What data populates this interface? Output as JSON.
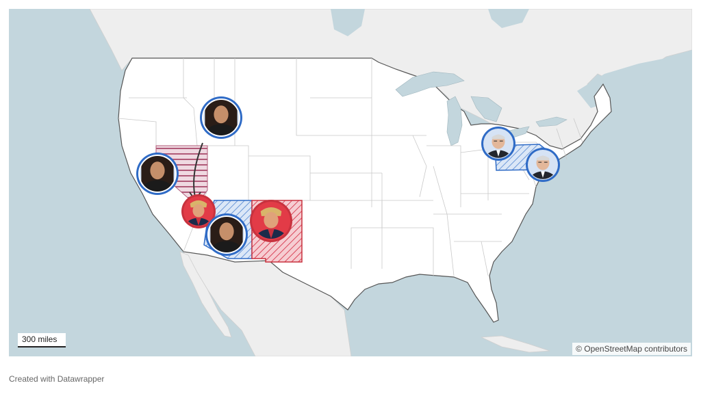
{
  "map": {
    "scale_label": "300 miles",
    "attribution": "© OpenStreetMap contributors",
    "colors": {
      "water": "#c3d6dd",
      "land_us": "#ffffff",
      "land_other": "#eeeeee",
      "democrat_blue": "#2f6bc6",
      "democrat_fill": "#cfe0f5",
      "republican_red": "#c8323e",
      "republican_fill": "#f6cdd2",
      "nevada_hatch": "#b05a78"
    },
    "markers": [
      {
        "id": "harris-utah",
        "icon": "harris-portrait",
        "party": "democrat"
      },
      {
        "id": "harris-california",
        "icon": "harris-portrait",
        "party": "democrat"
      },
      {
        "id": "trump-nevada",
        "icon": "trump-portrait",
        "party": "republican"
      },
      {
        "id": "harris-arizona",
        "icon": "harris-portrait",
        "party": "democrat"
      },
      {
        "id": "trump-new-mexico",
        "icon": "trump-portrait",
        "party": "republican"
      },
      {
        "id": "walz-pennsylvania",
        "icon": "walz-portrait",
        "party": "democrat"
      },
      {
        "id": "walz-new-jersey",
        "icon": "walz-portrait",
        "party": "democrat"
      }
    ]
  },
  "footer": {
    "credit": "Created with Datawrapper"
  }
}
